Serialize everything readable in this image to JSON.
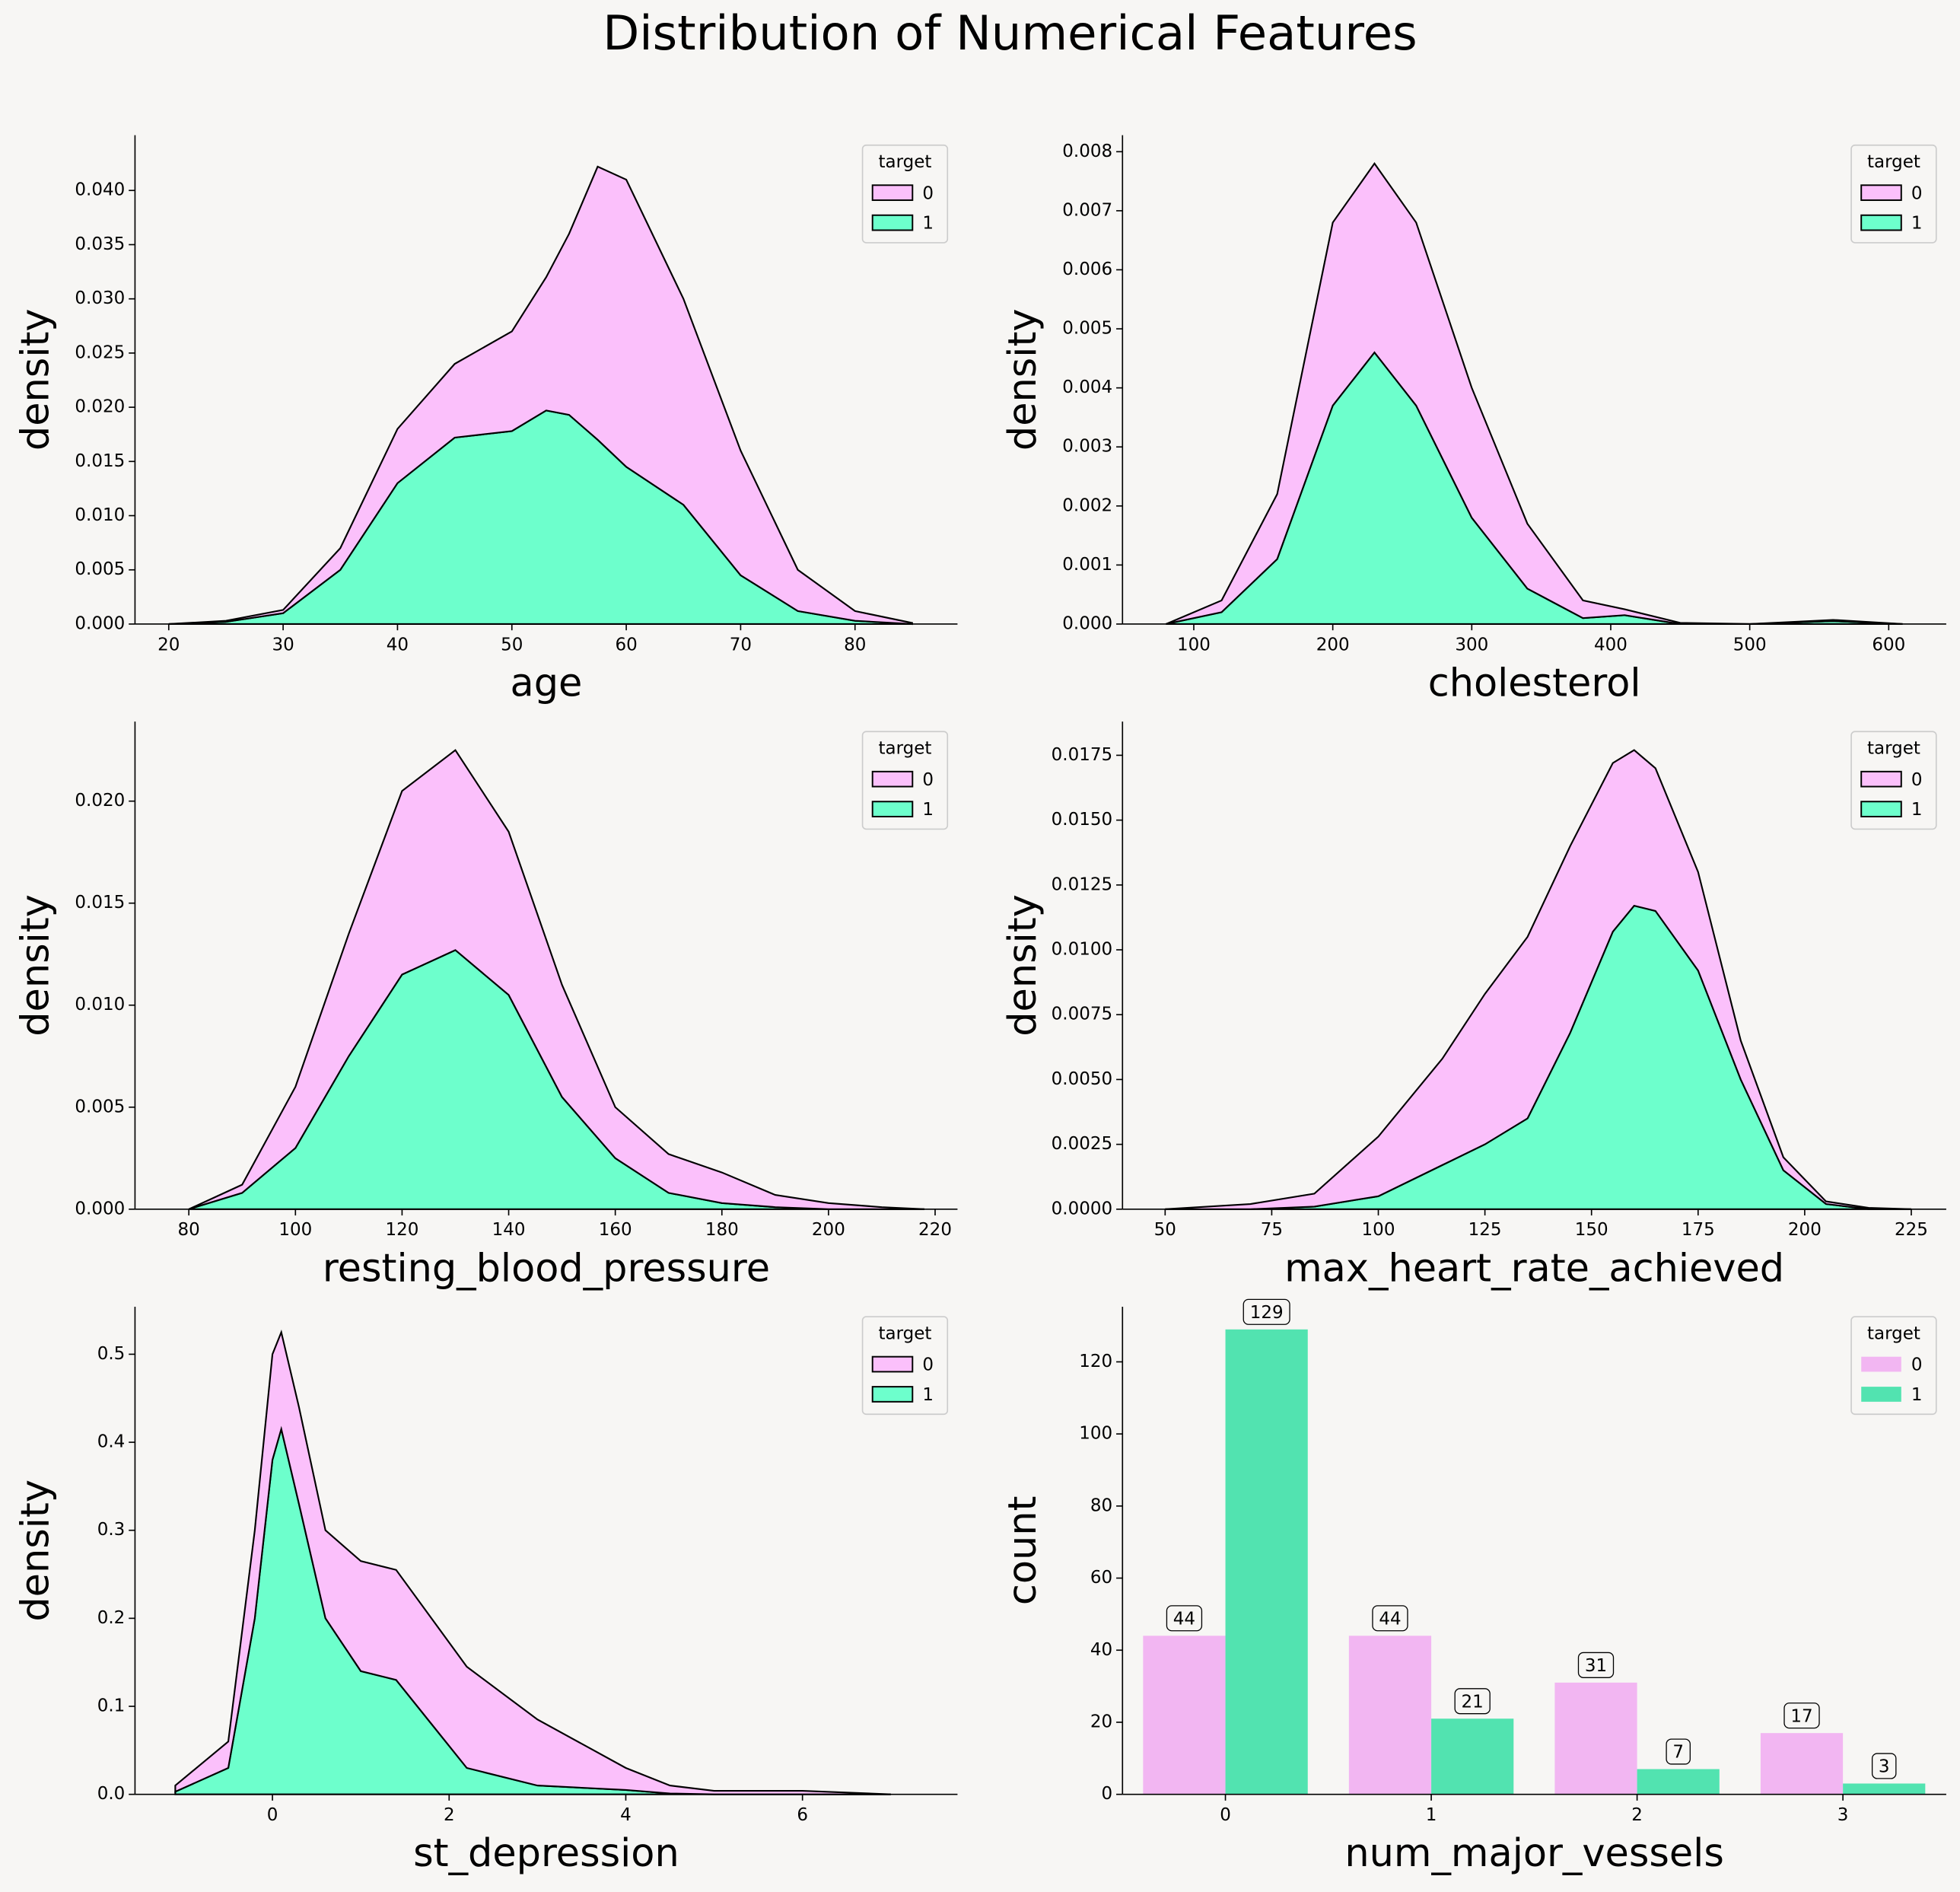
{
  "title": "Distribution of Numerical Features",
  "chart_data": [
    {
      "type": "kde",
      "xlabel": "age",
      "ylabel": "density",
      "legend_title": "target",
      "legend": "upper right",
      "x": [
        20,
        25,
        30,
        35,
        40,
        45,
        50,
        53,
        55,
        57.5,
        60,
        65,
        70,
        75,
        80,
        85
      ],
      "series": [
        {
          "name": "0",
          "color": "#fbc0fb",
          "values": [
            0,
            0.0001,
            0.0003,
            0.002,
            0.005,
            0.0068,
            0.0092,
            0.0123,
            0.0167,
            0.0252,
            0.0265,
            0.019,
            0.0115,
            0.0038,
            0.0009,
            0.0001
          ]
        },
        {
          "name": "1",
          "color": "#6dffcc",
          "values": [
            0,
            0.0002,
            0.001,
            0.005,
            0.013,
            0.0172,
            0.0178,
            0.0197,
            0.0193,
            0.017,
            0.0145,
            0.011,
            0.0045,
            0.0012,
            0.0003,
            0
          ]
        }
      ],
      "xlim": [
        17.05,
        88.96
      ],
      "xticks": [
        20,
        30,
        40,
        50,
        60,
        70,
        80
      ],
      "ylim": [
        0,
        0.0451
      ],
      "yticks": [
        {
          "value": 0,
          "label": "0.000"
        },
        0.005,
        {
          "value": 0.01,
          "label": "0.010"
        },
        0.015,
        {
          "value": 0.02,
          "label": "0.020"
        },
        0.025,
        {
          "value": 0.03,
          "label": "0.030"
        },
        0.035,
        {
          "value": 0.04,
          "label": "0.040"
        }
      ]
    },
    {
      "type": "kde",
      "xlabel": "cholesterol",
      "ylabel": "density",
      "legend_title": "target",
      "legend": "upper right",
      "x": [
        80,
        120,
        160,
        200,
        230,
        260,
        300,
        340,
        380,
        410,
        450,
        500,
        560,
        610
      ],
      "series": [
        {
          "name": "0",
          "color": "#fbc0fb",
          "values": [
            0,
            0.0002,
            0.0011,
            0.0031,
            0.0032,
            0.0031,
            0.0022,
            0.0011,
            0.0003,
            0.0001,
            2e-05,
            0,
            2e-05,
            0
          ]
        },
        {
          "name": "1",
          "color": "#6dffcc",
          "values": [
            0,
            0.0002,
            0.0011,
            0.0037,
            0.0046,
            0.0037,
            0.0018,
            0.0006,
            0.0001,
            0.00015,
            0,
            0,
            5e-05,
            0
          ]
        }
      ],
      "xlim": [
        48.7,
        641.4
      ],
      "xticks": [
        100,
        200,
        300,
        400,
        500,
        600
      ],
      "ylim": [
        0,
        0.00828
      ],
      "yticks": [
        {
          "value": 0,
          "label": "0.000"
        },
        0.001,
        0.002,
        0.003,
        0.004,
        0.005,
        0.006,
        0.007,
        0.008
      ]
    },
    {
      "type": "kde",
      "xlabel": "resting_blood_pressure",
      "ylabel": "density",
      "legend_title": "target",
      "legend": "upper right",
      "x": [
        80,
        90,
        100,
        110,
        120,
        130,
        140,
        150,
        160,
        170,
        180,
        190,
        200,
        210,
        218
      ],
      "series": [
        {
          "name": "0",
          "color": "#fbc0fb",
          "values": [
            0,
            0.0004,
            0.003,
            0.006,
            0.009,
            0.0098,
            0.008,
            0.0055,
            0.0025,
            0.0019,
            0.0015,
            0.0006,
            0.0003,
            0.0001,
            0
          ]
        },
        {
          "name": "1",
          "color": "#6dffcc",
          "values": [
            0,
            0.0008,
            0.003,
            0.0075,
            0.0115,
            0.0127,
            0.0105,
            0.0055,
            0.0025,
            0.0008,
            0.0003,
            0.0001,
            0,
            0,
            0
          ]
        }
      ],
      "xlim": [
        69.9,
        224.2
      ],
      "xticks": [
        80,
        100,
        120,
        140,
        160,
        180,
        200,
        220
      ],
      "ylim": [
        0,
        0.0239
      ],
      "yticks": [
        {
          "value": 0,
          "label": "0.000"
        },
        0.005,
        {
          "value": 0.01,
          "label": "0.010"
        },
        0.015,
        {
          "value": 0.02,
          "label": "0.020"
        }
      ]
    },
    {
      "type": "kde",
      "xlabel": "max_heart_rate_achieved",
      "ylabel": "density",
      "legend_title": "target",
      "legend": "upper right",
      "x": [
        50,
        70,
        85,
        100,
        115,
        125,
        135,
        145,
        155,
        160,
        165,
        175,
        185,
        195,
        205,
        215,
        225
      ],
      "series": [
        {
          "name": "0",
          "color": "#fbc0fb",
          "values": [
            0,
            0.0002,
            0.0005,
            0.0023,
            0.0041,
            0.0058,
            0.007,
            0.0072,
            0.0065,
            0.006,
            0.0055,
            0.0038,
            0.0015,
            0.0005,
            0.0001,
            5e-05,
            0
          ]
        },
        {
          "name": "1",
          "color": "#6dffcc",
          "values": [
            0,
            0,
            0.0001,
            0.0005,
            0.0017,
            0.0025,
            0.0035,
            0.0068,
            0.0107,
            0.0117,
            0.0115,
            0.0092,
            0.005,
            0.0015,
            0.0002,
            0,
            0
          ]
        }
      ],
      "xlim": [
        40.0,
        233.2
      ],
      "xticks": [
        50,
        75,
        100,
        125,
        150,
        175,
        200,
        225
      ],
      "ylim": [
        0,
        0.0188
      ],
      "yticks": [
        {
          "value": 0,
          "label": "0.0000"
        },
        0.0025,
        {
          "value": 0.005,
          "label": "0.0050"
        },
        0.0075,
        {
          "value": 0.01,
          "label": "0.0100"
        },
        0.0125,
        {
          "value": 0.015,
          "label": "0.0150"
        },
        0.0175
      ]
    },
    {
      "type": "kde",
      "xlabel": "st_depression",
      "ylabel": "density",
      "legend_title": "target",
      "legend": "upper right",
      "x": [
        -1.1,
        -0.5,
        -0.2,
        0,
        0.1,
        0.3,
        0.6,
        1,
        1.4,
        1.8,
        2.2,
        3,
        4,
        4.5,
        5,
        6,
        7
      ],
      "series": [
        {
          "name": "0",
          "color": "#fbc0fb",
          "values": [
            0.007,
            0.03,
            0.1,
            0.12,
            0.11,
            0.11,
            0.1,
            0.125,
            0.125,
            0.12,
            0.115,
            0.075,
            0.025,
            0.009,
            0.004,
            0.004,
            0
          ]
        },
        {
          "name": "1",
          "color": "#6dffcc",
          "values": [
            0.003,
            0.03,
            0.2,
            0.38,
            0.415,
            0.33,
            0.2,
            0.14,
            0.13,
            0.08,
            0.03,
            0.01,
            0.005,
            0.001,
            0,
            0,
            0
          ]
        }
      ],
      "xlim": [
        -1.556,
        7.755
      ],
      "xticks": [
        0,
        2,
        4,
        6
      ],
      "ylim": [
        0,
        0.554
      ],
      "yticks": [
        {
          "value": 0,
          "label": "0.0"
        },
        0.1,
        0.2,
        0.3,
        0.4,
        0.5
      ]
    },
    {
      "type": "bar",
      "xlabel": "num_major_vessels",
      "ylabel": "count",
      "legend_title": "target",
      "legend": "upper right",
      "categories": [
        "0",
        "1",
        "2",
        "3"
      ],
      "series": [
        {
          "name": "0",
          "color": "#f2b6f2",
          "values": [
            44,
            44,
            31,
            17
          ]
        },
        {
          "name": "1",
          "color": "#52e3b0",
          "values": [
            129,
            21,
            7,
            3
          ]
        }
      ],
      "ylim": [
        0,
        135.3
      ],
      "yticks": [
        0,
        20,
        40,
        60,
        80,
        100,
        120
      ]
    }
  ]
}
